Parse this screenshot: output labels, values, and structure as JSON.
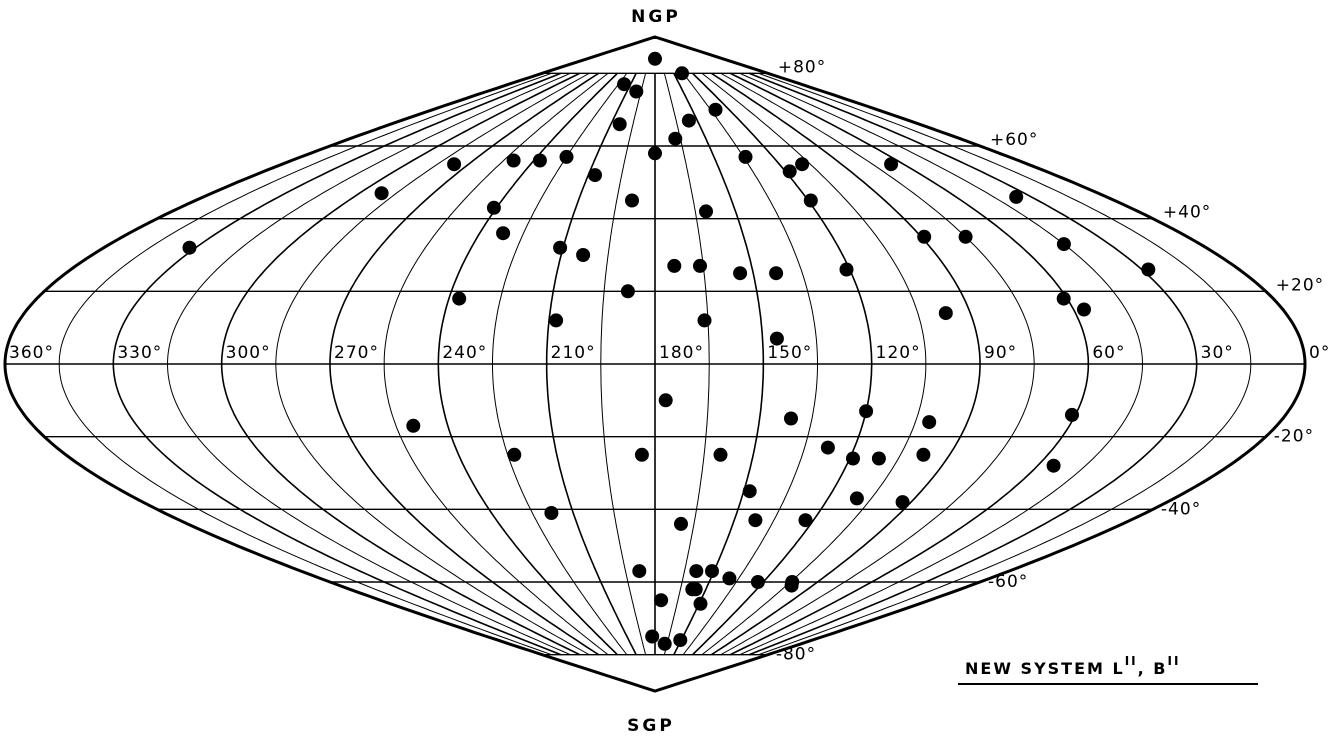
{
  "chart_data": {
    "type": "scatter",
    "projection": "sinusoidal (equal-area)",
    "title": "",
    "system_label": {
      "text": "NEW SYSTEM  L",
      "sup1": "II",
      "mid": ",  B",
      "sup2": "II"
    },
    "pole_labels": {
      "north": "NGP",
      "south": "SGP"
    },
    "x_ticks": [
      {
        "value": 360,
        "label": "360°"
      },
      {
        "value": 330,
        "label": "330°"
      },
      {
        "value": 300,
        "label": "300°"
      },
      {
        "value": 270,
        "label": "270°"
      },
      {
        "value": 240,
        "label": "240°"
      },
      {
        "value": 210,
        "label": "210°"
      },
      {
        "value": 180,
        "label": "180°"
      },
      {
        "value": 150,
        "label": "150°"
      },
      {
        "value": 120,
        "label": "120°"
      },
      {
        "value": 90,
        "label": "90°"
      },
      {
        "value": 60,
        "label": "60°"
      },
      {
        "value": 30,
        "label": "30°"
      },
      {
        "value": 0,
        "label": "0°"
      }
    ],
    "y_ticks": [
      {
        "value": 80,
        "label": "+80°"
      },
      {
        "value": 60,
        "label": "+60°"
      },
      {
        "value": 40,
        "label": "+40°"
      },
      {
        "value": 20,
        "label": "+20°"
      },
      {
        "value": -20,
        "label": "-20°"
      },
      {
        "value": -40,
        "label": "-40°"
      },
      {
        "value": -60,
        "label": "-60°"
      },
      {
        "value": -80,
        "label": "-80°"
      }
    ],
    "xlim": [
      0,
      360
    ],
    "ylim": [
      -90,
      90
    ],
    "x_reversed": true,
    "grid": true,
    "points": [
      [
        180,
        84
      ],
      [
        137,
        80
      ],
      [
        218,
        77
      ],
      [
        200,
        75
      ],
      [
        204,
        66
      ],
      [
        156,
        67
      ],
      [
        168,
        62
      ],
      [
        131,
        70
      ],
      [
        180,
        58
      ],
      [
        277,
        55
      ],
      [
        225,
        57
      ],
      [
        250,
        56
      ],
      [
        237,
        56
      ],
      [
        134,
        57
      ],
      [
        109,
        55
      ],
      [
        118,
        53
      ],
      [
        66,
        55
      ],
      [
        291,
        47
      ],
      [
        207,
        52
      ],
      [
        189,
        45
      ],
      [
        119,
        45
      ],
      [
        241,
        43
      ],
      [
        161,
        42
      ],
      [
        36,
        46
      ],
      [
        332,
        32
      ],
      [
        232,
        36
      ],
      [
        211,
        32
      ],
      [
        203,
        30
      ],
      [
        89,
        35
      ],
      [
        75,
        35
      ],
      [
        45,
        33
      ],
      [
        174,
        27
      ],
      [
        166,
        27
      ],
      [
        121,
        26
      ],
      [
        154,
        25
      ],
      [
        143,
        25
      ],
      [
        28,
        26
      ],
      [
        188,
        20
      ],
      [
        237,
        18
      ],
      [
        97,
        14
      ],
      [
        57,
        15
      ],
      [
        61,
        18
      ],
      [
        208,
        12
      ],
      [
        166,
        12
      ],
      [
        146,
        7
      ],
      [
        177,
        -10
      ],
      [
        141,
        -15
      ],
      [
        120,
        -13
      ],
      [
        101,
        -16
      ],
      [
        61,
        -14
      ],
      [
        250,
        -17
      ],
      [
        223,
        -25
      ],
      [
        184,
        -25
      ],
      [
        160,
        -25
      ],
      [
        128,
        -23
      ],
      [
        119,
        -26
      ],
      [
        111,
        -26
      ],
      [
        98,
        -25
      ],
      [
        55,
        -28
      ],
      [
        148,
        -35
      ],
      [
        110,
        -37
      ],
      [
        93,
        -38
      ],
      [
        218,
        -41
      ],
      [
        170,
        -44
      ],
      [
        142,
        -43
      ],
      [
        123,
        -43
      ],
      [
        188,
        -57
      ],
      [
        159,
        -57
      ],
      [
        151,
        -57
      ],
      [
        140,
        -59
      ],
      [
        123,
        -60
      ],
      [
        104,
        -60
      ],
      [
        158,
        -62
      ],
      [
        156,
        -62
      ],
      [
        176,
        -65
      ],
      [
        149,
        -66
      ],
      [
        102,
        -61
      ],
      [
        168,
        -77
      ],
      [
        183,
        -75
      ],
      [
        151,
        -76
      ]
    ]
  }
}
